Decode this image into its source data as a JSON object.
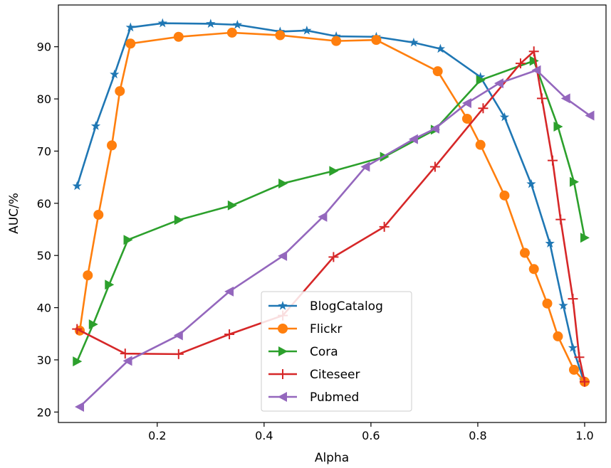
{
  "chart_data": {
    "type": "line",
    "title": "",
    "xlabel": "Alpha",
    "ylabel": "AUC/%",
    "xlim": [
      0.015,
      1.04
    ],
    "ylim": [
      18.0,
      98.0
    ],
    "xticks": [
      0.2,
      0.4,
      0.6,
      0.8,
      1.0
    ],
    "xtick_labels": [
      "0.2",
      "0.4",
      "0.6",
      "0.8",
      "1.0"
    ],
    "yticks": [
      20,
      30,
      40,
      50,
      60,
      70,
      80,
      90
    ],
    "ytick_labels": [
      "20",
      "30",
      "40",
      "50",
      "60",
      "70",
      "80",
      "90"
    ],
    "grid": false,
    "legend_position": "lower-center",
    "series": [
      {
        "name": "BlogCatalog",
        "color": "#1f77b4",
        "marker": "star",
        "x": [
          0.05,
          0.085,
          0.12,
          0.15,
          0.21,
          0.3,
          0.35,
          0.43,
          0.48,
          0.535,
          0.61,
          0.68,
          0.73,
          0.805,
          0.85,
          0.9,
          0.935,
          0.96,
          0.978,
          0.998
        ],
        "y": [
          63.3,
          74.8,
          84.7,
          93.7,
          94.5,
          94.4,
          94.2,
          92.9,
          93.1,
          92.0,
          91.9,
          90.8,
          89.6,
          84.2,
          76.5,
          63.7,
          52.3,
          40.4,
          32.3,
          26.1
        ]
      },
      {
        "name": "Flickr",
        "color": "#ff7f0e",
        "marker": "circle",
        "x": [
          0.055,
          0.07,
          0.09,
          0.115,
          0.13,
          0.15,
          0.24,
          0.34,
          0.43,
          0.535,
          0.61,
          0.725,
          0.78,
          0.805,
          0.85,
          0.888,
          0.905,
          0.93,
          0.95,
          0.98,
          1.0
        ],
        "y": [
          35.6,
          46.2,
          57.8,
          71.1,
          81.5,
          90.6,
          91.9,
          92.7,
          92.2,
          91.1,
          91.3,
          85.3,
          76.2,
          71.2,
          61.5,
          50.5,
          47.4,
          40.8,
          34.5,
          28.1,
          25.8
        ]
      },
      {
        "name": "Cora",
        "color": "#2ca02c",
        "marker": "triangle-right",
        "x": [
          0.05,
          0.08,
          0.11,
          0.145,
          0.24,
          0.34,
          0.435,
          0.53,
          0.625,
          0.72,
          0.805,
          0.905,
          0.95,
          0.98,
          1.0
        ],
        "y": [
          29.7,
          36.8,
          44.4,
          53.0,
          56.8,
          59.6,
          63.8,
          66.2,
          68.9,
          74.1,
          83.6,
          87.3,
          74.7,
          64.1,
          53.4
        ]
      },
      {
        "name": "Citeseer",
        "color": "#d62728",
        "marker": "plus",
        "x": [
          0.05,
          0.14,
          0.24,
          0.335,
          0.435,
          0.53,
          0.625,
          0.72,
          0.81,
          0.88,
          0.905,
          0.92,
          0.94,
          0.955,
          0.978,
          0.99,
          1.0
        ],
        "y": [
          35.9,
          31.2,
          31.1,
          34.9,
          38.5,
          49.7,
          55.5,
          67.0,
          78.2,
          86.8,
          89.1,
          80.1,
          68.2,
          56.9,
          41.7,
          30.5,
          25.8
        ]
      },
      {
        "name": "Pubmed",
        "color": "#9467bd",
        "marker": "triangle-left",
        "x": [
          0.055,
          0.145,
          0.24,
          0.335,
          0.435,
          0.51,
          0.59,
          0.68,
          0.72,
          0.78,
          0.84,
          0.91,
          0.965,
          1.01
        ],
        "y": [
          21.0,
          29.8,
          34.7,
          43.1,
          49.9,
          57.4,
          67.0,
          72.3,
          74.3,
          79.2,
          83.0,
          85.5,
          80.1,
          76.8
        ]
      }
    ]
  }
}
